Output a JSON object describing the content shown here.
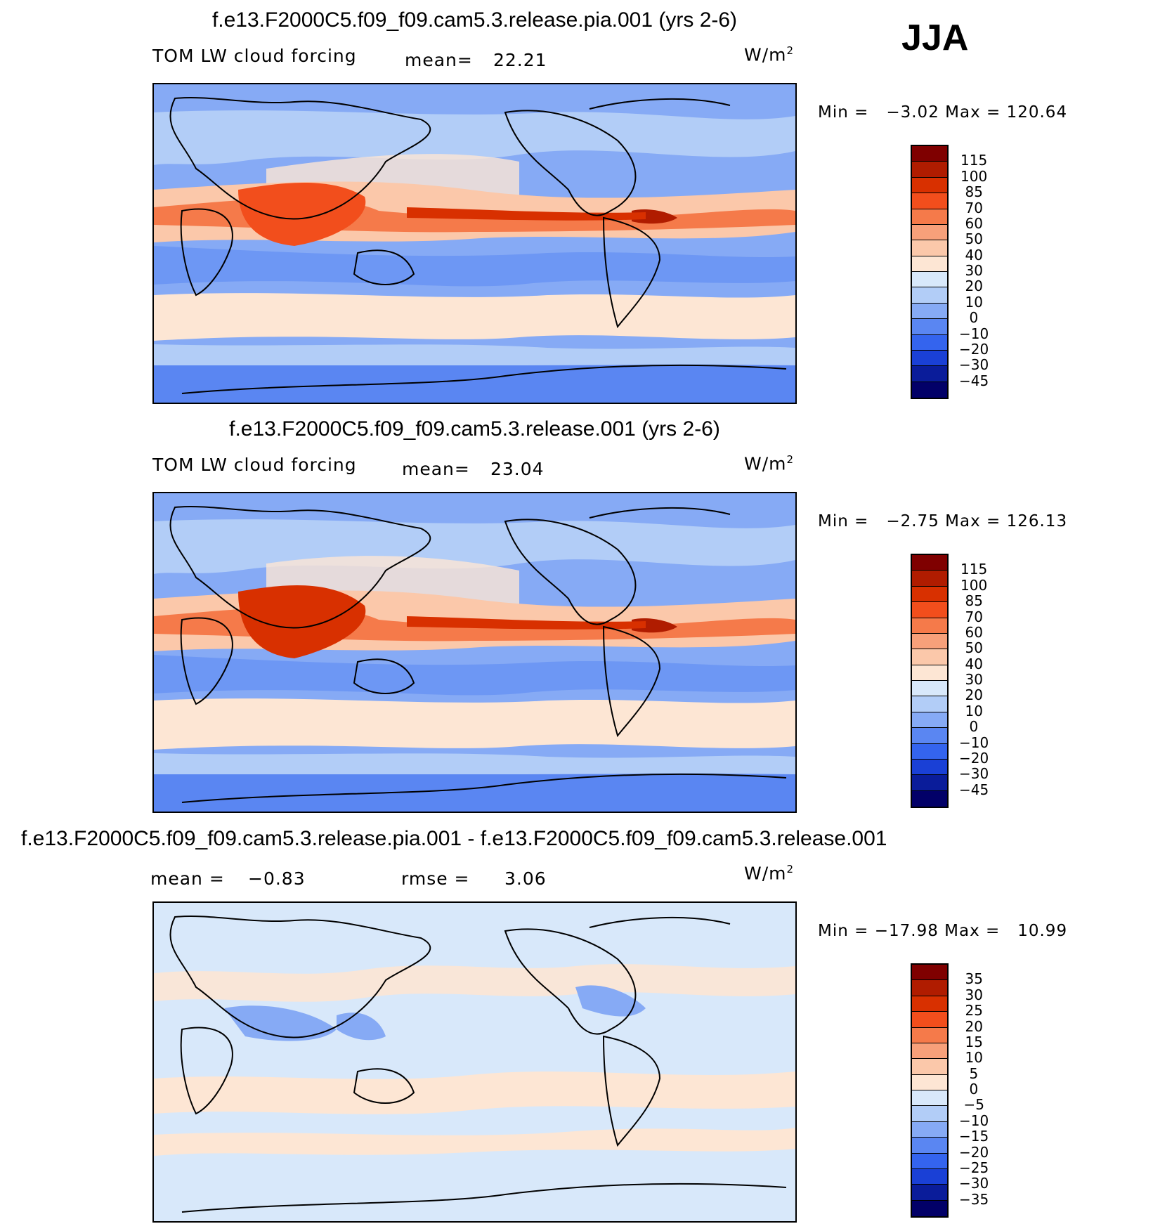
{
  "season": "JJA",
  "panels": [
    {
      "title": "f.e13.F2000C5.f09_f09.cam5.3.release.pia.001 (yrs 2-6)",
      "variable": "TOM LW cloud forcing",
      "mean_label": "mean=",
      "mean_value": "22.21",
      "units": "W/m",
      "units_sup": "2",
      "min_label": "Min =",
      "min_value": "−3.02",
      "max_label": "Max =",
      "max_value": "120.64"
    },
    {
      "title": "f.e13.F2000C5.f09_f09.cam5.3.release.001 (yrs 2-6)",
      "variable": "TOM LW cloud forcing",
      "mean_label": "mean=",
      "mean_value": "23.04",
      "units": "W/m",
      "units_sup": "2",
      "min_label": "Min =",
      "min_value": "−2.75",
      "max_label": "Max =",
      "max_value": "126.13"
    },
    {
      "title": "f.e13.F2000C5.f09_f09.cam5.3.release.pia.001 - f.e13.F2000C5.f09_f09.cam5.3.release.001",
      "mean_label": "mean =",
      "mean_value": "−0.83",
      "rmse_label": "rmse =",
      "rmse_value": "3.06",
      "units": "W/m",
      "units_sup": "2",
      "min_label": "Min =",
      "min_value": "−17.98",
      "max_label": "Max =",
      "max_value": "10.99"
    }
  ],
  "chart_data": [
    {
      "type": "heatmap",
      "title": "f.e13.F2000C5.f09_f09.cam5.3.release.pia.001 (yrs 2-6)",
      "variable": "TOM LW cloud forcing",
      "units": "W/m2",
      "mean": 22.21,
      "min": -3.02,
      "max": 120.64,
      "levels": [
        "115",
        "100",
        "85",
        "70",
        "60",
        "50",
        "40",
        "30",
        "20",
        "10",
        "0",
        "−10",
        "−20",
        "−30",
        "−45"
      ]
    },
    {
      "type": "heatmap",
      "title": "f.e13.F2000C5.f09_f09.cam5.3.release.001 (yrs 2-6)",
      "variable": "TOM LW cloud forcing",
      "units": "W/m2",
      "mean": 23.04,
      "min": -2.75,
      "max": 126.13,
      "levels": [
        "115",
        "100",
        "85",
        "70",
        "60",
        "50",
        "40",
        "30",
        "20",
        "10",
        "0",
        "−10",
        "−20",
        "−30",
        "−45"
      ]
    },
    {
      "type": "heatmap",
      "title": "f.e13.F2000C5.f09_f09.cam5.3.release.pia.001 - f.e13.F2000C5.f09_f09.cam5.3.release.001",
      "units": "W/m2",
      "mean": -0.83,
      "rmse": 3.06,
      "min": -17.98,
      "max": 10.99,
      "levels": [
        "35",
        "30",
        "25",
        "20",
        "15",
        "10",
        "5",
        "0",
        "−5",
        "−10",
        "−15",
        "−20",
        "−25",
        "−30",
        "−35"
      ]
    }
  ],
  "colors": {
    "scale": [
      "#7f0000",
      "#b01c00",
      "#d83000",
      "#f24e1c",
      "#f57a4a",
      "#f7a07a",
      "#fbc8aa",
      "#fde6d4",
      "#d8e8fa",
      "#b2cdf7",
      "#86aaf5",
      "#5a86f2",
      "#3464ee",
      "#1a40d6",
      "#0a1c9a",
      "#020068"
    ]
  }
}
